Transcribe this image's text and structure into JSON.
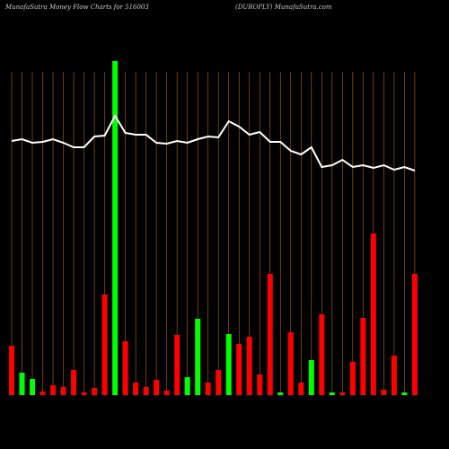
{
  "chart_data": {
    "type": "bar",
    "title": "MunafaSutra  Money Flow  Charts for 516003",
    "subtitle": "(DUROPLY) MunafaSutra.com",
    "ylim": [
      0,
      380
    ],
    "grid_color": "#b5651d",
    "bars": {
      "values": [
        55,
        25,
        18,
        4,
        11,
        9,
        28,
        3,
        8,
        112,
        372,
        60,
        14,
        9,
        17,
        5,
        67,
        20,
        85,
        14,
        28,
        68,
        57,
        65,
        23,
        135,
        3,
        70,
        14,
        39,
        90,
        3,
        3,
        37,
        86,
        180,
        6,
        44,
        3,
        135
      ],
      "colors": [
        "#ff0000",
        "#00ff00",
        "#00ff00",
        "#ff0000",
        "#ff0000",
        "#ff0000",
        "#ff0000",
        "#ff0000",
        "#ff0000",
        "#ff0000",
        "#00ff00",
        "#ff0000",
        "#ff0000",
        "#ff0000",
        "#ff0000",
        "#ff0000",
        "#ff0000",
        "#00ff00",
        "#00ff00",
        "#ff0000",
        "#ff0000",
        "#00ff00",
        "#ff0000",
        "#ff0000",
        "#ff0000",
        "#ff0000",
        "#00ff00",
        "#ff0000",
        "#ff0000",
        "#00ff00",
        "#ff0000",
        "#00ff00",
        "#ff0000",
        "#ff0000",
        "#ff0000",
        "#ff0000",
        "#ff0000",
        "#ff0000",
        "#00ff00",
        "#ff0000"
      ]
    },
    "line": {
      "color": "#ffffff",
      "values": [
        283,
        285,
        281,
        282,
        285,
        281,
        276,
        276,
        288,
        289,
        311,
        292,
        290,
        290,
        281,
        280,
        283,
        281,
        285,
        288,
        287,
        305,
        299,
        290,
        293,
        282,
        282,
        272,
        268,
        276,
        254,
        256,
        262,
        254,
        256,
        253,
        256,
        251,
        254,
        250
      ]
    }
  }
}
